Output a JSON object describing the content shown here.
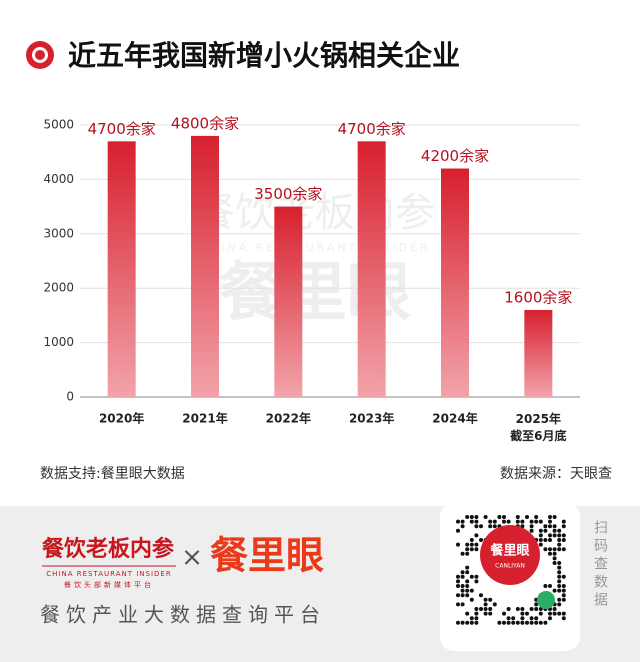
{
  "chart_data": {
    "type": "bar",
    "title": "近五年我国新增小火锅相关企业",
    "categories": [
      "2020年",
      "2021年",
      "2022年",
      "2023年",
      "2024年",
      "2025年\n截至6月底"
    ],
    "values": [
      4700,
      4800,
      3500,
      4700,
      4200,
      1600
    ],
    "value_labels": [
      "4700余家",
      "4800余家",
      "3500余家",
      "4700余家",
      "4200余家",
      "1600余家"
    ],
    "color": "#d7202e",
    "ylim": [
      0,
      5000
    ],
    "yticks": [
      0,
      1000,
      2000,
      3000,
      4000,
      5000
    ],
    "grid": true
  },
  "watermark": {
    "brand": "餐饮老板内参",
    "subtitle": "CHINA RESTAURANT INSIDER",
    "logo": "餐里眼"
  },
  "notes": {
    "support": "数据支持:餐里眼大数据",
    "source": "数据来源：天眼查"
  },
  "banner": {
    "brand": "餐饮老板内参",
    "brand_en": "CHINA RESTAURANT INSIDER",
    "brand_tag": "餐饮头部新媒体平台",
    "times": "×",
    "logo": "餐里眼",
    "tagline": "餐饮产业大数据查询平台",
    "qr_logo": "餐里眼",
    "qr_logo_en": "CANLIYAN",
    "scan": "扫码查数据"
  }
}
